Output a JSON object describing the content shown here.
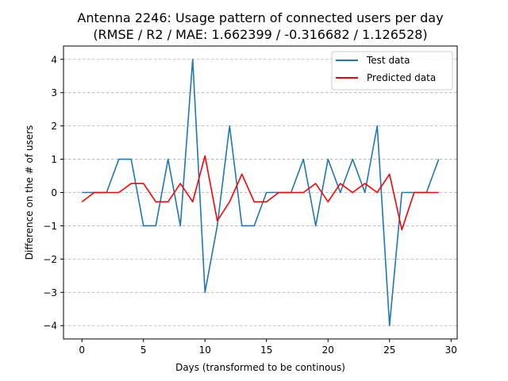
{
  "chart_data": {
    "type": "line",
    "title": "Antenna 2246: Usage pattern of connected users per day",
    "subtitle": "(RMSE / R2 / MAE: 1.662399 / -0.316682 / 1.126528)",
    "xlabel": "Days (transformed to be continous)",
    "ylabel": "Difference on the # of users",
    "xlim": [
      -1.5,
      30.5
    ],
    "ylim": [
      -4.4,
      4.4
    ],
    "xticks": [
      0,
      5,
      10,
      15,
      20,
      25,
      30
    ],
    "xtick_labels": [
      "0",
      "5",
      "10",
      "15",
      "20",
      "25",
      "30"
    ],
    "yticks": [
      -4,
      -3,
      -2,
      -1,
      0,
      1,
      2,
      3,
      4
    ],
    "ytick_labels": [
      "−4",
      "−3",
      "−2",
      "−1",
      "0",
      "1",
      "2",
      "3",
      "4"
    ],
    "grid": "y-dashed",
    "legend_position": "top-right",
    "x": [
      0,
      1,
      2,
      3,
      4,
      5,
      6,
      7,
      8,
      9,
      10,
      11,
      12,
      13,
      14,
      15,
      16,
      17,
      18,
      19,
      20,
      21,
      22,
      23,
      24,
      25,
      26,
      27,
      28,
      29
    ],
    "series": [
      {
        "name": "Test data",
        "color": "#1f77b4",
        "values": [
          0,
          0,
          0,
          1,
          1,
          -1,
          -1,
          1,
          -1,
          4,
          -3,
          -1,
          2,
          -1,
          -1,
          0,
          0,
          0,
          1,
          -1,
          1,
          0,
          1,
          0,
          2,
          -4,
          0,
          0,
          0,
          1
        ]
      },
      {
        "name": "Predicted data",
        "color": "#ff0000",
        "values": [
          -0.28,
          0,
          0,
          0,
          0.27,
          0.27,
          -0.28,
          -0.28,
          0.27,
          -0.28,
          1.1,
          -0.85,
          -0.28,
          0.55,
          -0.28,
          -0.28,
          0,
          0,
          0,
          0.27,
          -0.28,
          0.27,
          0,
          0.27,
          0,
          0.55,
          -1.12,
          0,
          0,
          0
        ]
      }
    ]
  }
}
